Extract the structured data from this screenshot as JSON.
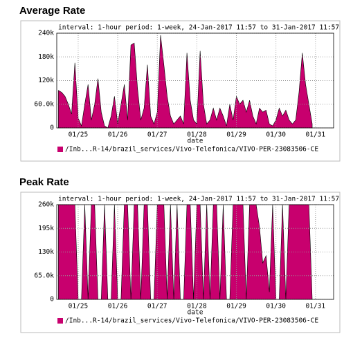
{
  "chart_data": [
    {
      "type": "area",
      "title": "Average Rate",
      "header": "interval: 1-hour  period: 1-week, 24-Jan-2017 11:57 to 31-Jan-2017 11:57",
      "xlabel": "date",
      "categories": [
        null,
        null,
        null,
        null,
        null,
        null,
        "01/25",
        null,
        null,
        null,
        null,
        null,
        null,
        null,
        null,
        null,
        null,
        null,
        "01/26",
        null,
        null,
        null,
        null,
        null,
        null,
        null,
        null,
        null,
        null,
        null,
        "01/27",
        null,
        null,
        null,
        null,
        null,
        null,
        null,
        null,
        null,
        null,
        null,
        "01/28",
        null,
        null,
        null,
        null,
        null,
        null,
        null,
        null,
        null,
        null,
        null,
        "01/29",
        null,
        null,
        null,
        null,
        null,
        null,
        null,
        null,
        null,
        null,
        null,
        "01/30",
        null,
        null,
        null,
        null,
        null,
        null,
        null,
        null,
        null,
        null,
        null,
        "01/31",
        null,
        null,
        null,
        null,
        null
      ],
      "series": [
        {
          "name": "/Inb...R-14/brazil_services/Vivo-Telefonica/VIVO-PER-23083506-CE",
          "color": "#c8006e",
          "values": [
            95000,
            90000,
            80000,
            60000,
            35000,
            165000,
            25000,
            5000,
            60000,
            110000,
            20000,
            60000,
            125000,
            40000,
            5000,
            0,
            30000,
            80000,
            10000,
            60000,
            110000,
            20000,
            210000,
            215000,
            100000,
            20000,
            50000,
            160000,
            30000,
            10000,
            40000,
            235000,
            160000,
            80000,
            30000,
            10000,
            20000,
            30000,
            10000,
            190000,
            70000,
            20000,
            10000,
            195000,
            60000,
            10000,
            20000,
            50000,
            20000,
            50000,
            30000,
            5000,
            60000,
            20000,
            80000,
            60000,
            70000,
            40000,
            70000,
            30000,
            10000,
            50000,
            40000,
            45000,
            10000,
            5000,
            20000,
            50000,
            30000,
            45000,
            20000,
            10000,
            20000,
            90000,
            190000,
            110000,
            60000,
            10000,
            null,
            null,
            null,
            null,
            null,
            null
          ]
        }
      ],
      "ylim": [
        0,
        240000
      ],
      "yticks": [
        0,
        {
          "value": 60000,
          "label": "60.0k"
        },
        {
          "value": 120000,
          "label": "120k"
        },
        {
          "value": 180000,
          "label": "180k"
        },
        {
          "value": 240000,
          "label": "240k"
        }
      ],
      "grid": true
    },
    {
      "type": "area",
      "title": "Peak Rate",
      "header": "interval: 1-hour  period: 1-week, 24-Jan-2017 11:57 to 31-Jan-2017 11:57",
      "xlabel": "date",
      "categories": [
        null,
        null,
        null,
        null,
        null,
        null,
        "01/25",
        null,
        null,
        null,
        null,
        null,
        null,
        null,
        null,
        null,
        null,
        null,
        "01/26",
        null,
        null,
        null,
        null,
        null,
        null,
        null,
        null,
        null,
        null,
        null,
        "01/27",
        null,
        null,
        null,
        null,
        null,
        null,
        null,
        null,
        null,
        null,
        null,
        "01/28",
        null,
        null,
        null,
        null,
        null,
        null,
        null,
        null,
        null,
        null,
        null,
        "01/29",
        null,
        null,
        null,
        null,
        null,
        null,
        null,
        null,
        null,
        null,
        null,
        "01/30",
        null,
        null,
        null,
        null,
        null,
        null,
        null,
        null,
        null,
        null,
        null,
        "01/31",
        null,
        null,
        null,
        null,
        null
      ],
      "series": [
        {
          "name": "/Inb...R-14/brazil_services/Vivo-Telefonica/VIVO-PER-23083506-CE",
          "color": "#c8006e",
          "values": [
            260000,
            260000,
            260000,
            260000,
            260000,
            260000,
            0,
            0,
            260000,
            0,
            260000,
            260000,
            0,
            0,
            260000,
            0,
            0,
            260000,
            0,
            0,
            260000,
            260000,
            0,
            260000,
            260000,
            0,
            260000,
            260000,
            0,
            0,
            260000,
            260000,
            260000,
            0,
            260000,
            0,
            260000,
            0,
            0,
            260000,
            260000,
            0,
            260000,
            260000,
            0,
            260000,
            0,
            260000,
            260000,
            0,
            260000,
            0,
            0,
            260000,
            260000,
            260000,
            260000,
            0,
            260000,
            260000,
            260000,
            200000,
            100000,
            120000,
            20000,
            260000,
            0,
            0,
            260000,
            0,
            260000,
            260000,
            260000,
            260000,
            260000,
            260000,
            260000,
            0,
            null,
            null,
            null,
            null,
            null,
            null
          ]
        }
      ],
      "ylim": [
        0,
        260000
      ],
      "yticks": [
        0,
        {
          "value": 65000,
          "label": "65.0k"
        },
        {
          "value": 130000,
          "label": "130k"
        },
        {
          "value": 195000,
          "label": "195k"
        },
        {
          "value": 260000,
          "label": "260k"
        }
      ],
      "grid": true
    }
  ]
}
